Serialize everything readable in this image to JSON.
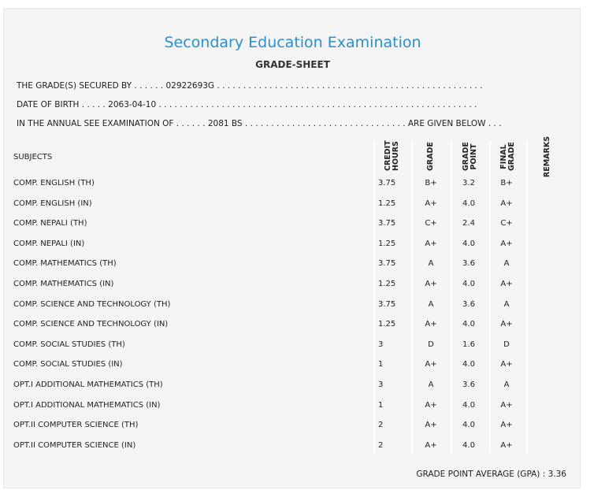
{
  "header": {
    "title": "Secondary Education Examination",
    "subtitle": "GRADE-SHEET"
  },
  "info": [
    "THE GRADE(S) SECURED BY . . . . . . 02922693G . . . . . . . . . . . . . . . . . . . . . . . . . . . . . . . . . . . . . . . . . . . . . . . . . . .",
    "DATE OF BIRTH . . . . . 2063-04-10 . . . . . . . . . . . . . . . . . . . . . . . . . . . . . . . . . . . . . . . . . . . . . . . . . . . . . . . . . . . . .",
    "IN THE ANNUAL SEE EXAMINATION OF . . . . . . 2081 BS . . . . . . . . . . . . . . . . . . . . . . . . . . . . . . . ARE GIVEN BELOW . . ."
  ],
  "table": {
    "columns": [
      "SUBJECTS",
      "CREDIT HOURS",
      "GRADE",
      "GRADE POINT",
      "FINAL GRADE",
      "REMARKS"
    ],
    "rows": [
      [
        "COMP. ENGLISH (TH)",
        "3.75",
        "B+",
        "3.2",
        "B+"
      ],
      [
        "COMP. ENGLISH (IN)",
        "1.25",
        "A+",
        "4.0",
        "A+"
      ],
      [
        "COMP. NEPALI (TH)",
        "3.75",
        "C+",
        "2.4",
        "C+"
      ],
      [
        "COMP. NEPALI (IN)",
        "1.25",
        "A+",
        "4.0",
        "A+"
      ],
      [
        "COMP. MATHEMATICS (TH)",
        "3.75",
        "A",
        "3.6",
        "A"
      ],
      [
        "COMP. MATHEMATICS (IN)",
        "1.25",
        "A+",
        "4.0",
        "A+"
      ],
      [
        "COMP. SCIENCE AND TECHNOLOGY (TH)",
        "3.75",
        "A",
        "3.6",
        "A"
      ],
      [
        "COMP. SCIENCE AND TECHNOLOGY (IN)",
        "1.25",
        "A+",
        "4.0",
        "A+"
      ],
      [
        "COMP. SOCIAL STUDIES (TH)",
        "3",
        "D",
        "1.6",
        "D"
      ],
      [
        "COMP. SOCIAL STUDIES (IN)",
        "1",
        "A+",
        "4.0",
        "A+"
      ],
      [
        "OPT.I ADDITIONAL MATHEMATICS (TH)",
        "3",
        "A",
        "3.6",
        "A"
      ],
      [
        "OPT.I ADDITIONAL MATHEMATICS (IN)",
        "1",
        "A+",
        "4.0",
        "A+"
      ],
      [
        "OPT.II COMPUTER SCIENCE (TH)",
        "2",
        "A+",
        "4.0",
        "A+"
      ],
      [
        "OPT.II COMPUTER SCIENCE (IN)",
        "2",
        "A+",
        "4.0",
        "A+"
      ]
    ]
  },
  "gpa": {
    "label": "GRADE POINT AVERAGE (GPA) :",
    "value": "3.36"
  }
}
